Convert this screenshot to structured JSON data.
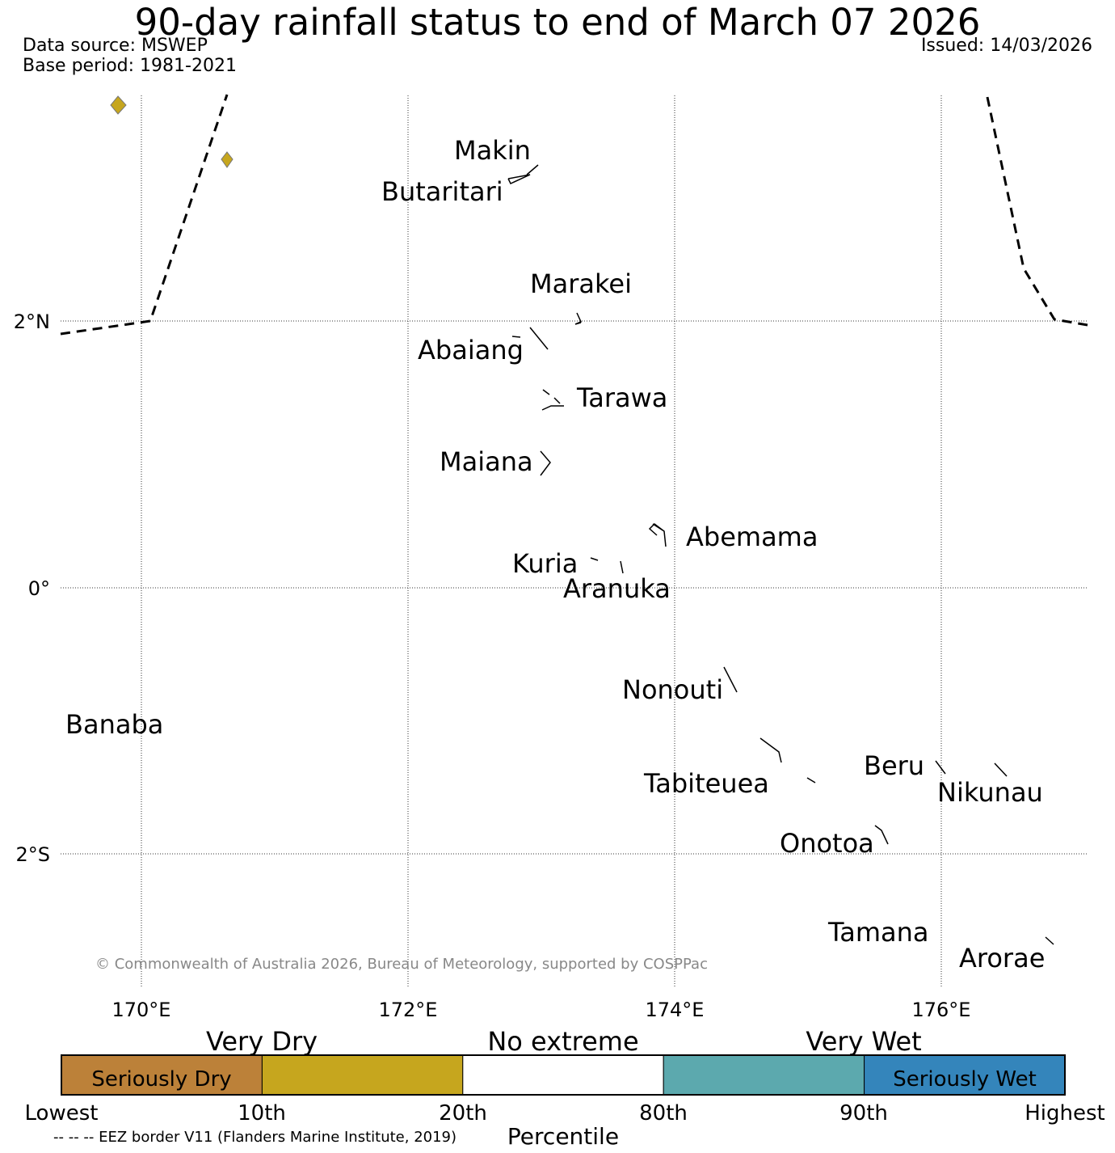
{
  "header": {
    "title": "90-day rainfall status to end of March 07 2026",
    "data_source": "Data source: MSWEP",
    "base_period": "Base period: 1981-2021",
    "issued": "Issued: 14/03/2026"
  },
  "map": {
    "lat_labels": [
      "2°N",
      "0°",
      "2°S"
    ],
    "lon_labels": [
      "170°E",
      "172°E",
      "174°E",
      "176°E"
    ],
    "islands": {
      "makin": "Makin",
      "butaritari": "Butaritari",
      "marakei": "Marakei",
      "abaiang": "Abaiang",
      "tarawa": "Tarawa",
      "maiana": "Maiana",
      "abemama": "Abemama",
      "kuria": "Kuria",
      "aranuka": "Aranuka",
      "nonouti": "Nonouti",
      "banaba": "Banaba",
      "beru": "Beru",
      "nikunau": "Nikunau",
      "tabiteuea": "Tabiteuea",
      "onotoa": "Onotoa",
      "tamana": "Tamana",
      "arorae": "Arorae"
    },
    "copyright": "© Commonwealth of Australia 2026, Bureau of Meteorology, supported by COSPPac"
  },
  "legend": {
    "group_labels": {
      "very_dry": "Very Dry",
      "no_extreme": "No extreme",
      "very_wet": "Very Wet"
    },
    "segments": [
      {
        "label": "Seriously Dry",
        "color": "#bc8139"
      },
      {
        "label": "",
        "color": "#c6a61e"
      },
      {
        "label": "",
        "color": "#ffffff"
      },
      {
        "label": "",
        "color": "#5ca9ae"
      },
      {
        "label": "Seriously Wet",
        "color": "#3485bb"
      }
    ],
    "ticks": [
      "Lowest",
      "10th",
      "20th",
      "80th",
      "90th",
      "Highest"
    ],
    "axis_label": "Percentile"
  },
  "footer": {
    "eez_note": "-- -- -- EEZ border V11 (Flanders Marine Institute, 2019)"
  }
}
